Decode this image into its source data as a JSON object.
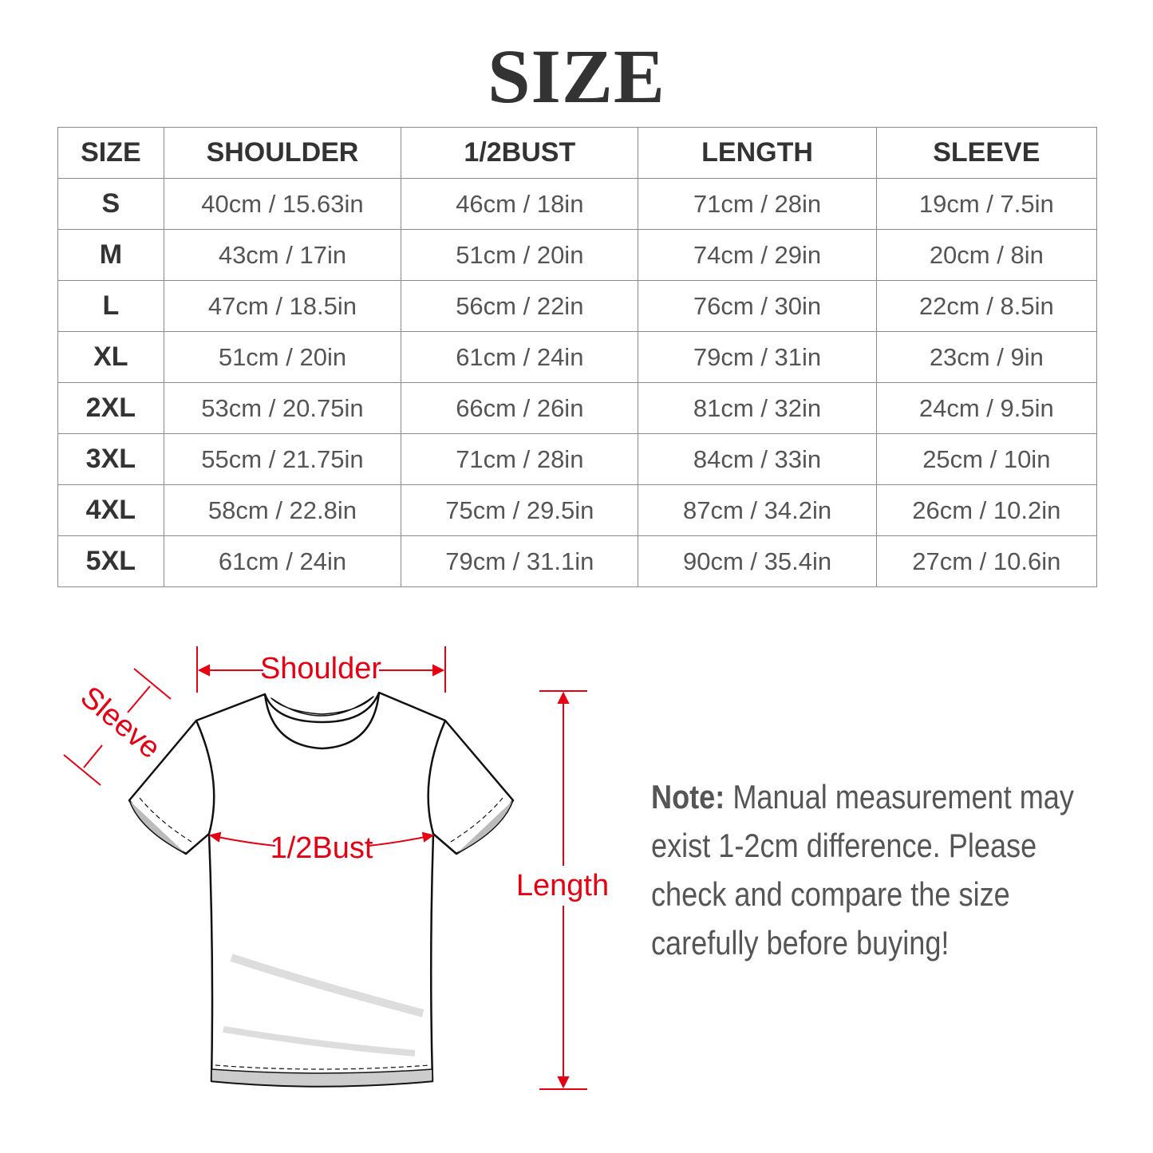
{
  "title": "SIZE",
  "table": {
    "headers": [
      "SIZE",
      "SHOULDER",
      "1/2BUST",
      "LENGTH",
      "SLEEVE"
    ],
    "rows": [
      [
        "S",
        "40cm / 15.63in",
        "46cm / 18in",
        "71cm / 28in",
        "19cm / 7.5in"
      ],
      [
        "M",
        "43cm / 17in",
        "51cm / 20in",
        "74cm / 29in",
        "20cm / 8in"
      ],
      [
        "L",
        "47cm / 18.5in",
        "56cm / 22in",
        "76cm / 30in",
        "22cm / 8.5in"
      ],
      [
        "XL",
        "51cm / 20in",
        "61cm / 24in",
        "79cm / 31in",
        "23cm / 9in"
      ],
      [
        "2XL",
        "53cm / 20.75in",
        "66cm / 26in",
        "81cm / 32in",
        "24cm / 9.5in"
      ],
      [
        "3XL",
        "55cm / 21.75in",
        "71cm / 28in",
        "84cm / 33in",
        "25cm / 10in"
      ],
      [
        "4XL",
        "58cm / 22.8in",
        "75cm / 29.5in",
        "87cm / 34.2in",
        "26cm / 10.2in"
      ],
      [
        "5XL",
        "61cm / 24in",
        "79cm / 31.1in",
        "90cm / 35.4in",
        "27cm / 10.6in"
      ]
    ]
  },
  "diagram": {
    "labels": {
      "shoulder": "Shoulder",
      "sleeve": "Sleeve",
      "bust": "1/2Bust",
      "length": "Length"
    },
    "accent_color": "#e60012"
  },
  "note": {
    "label": "Note:",
    "text": " Manual measurement may exist 1-2cm difference. Please check and compare the size carefully before buying!"
  }
}
